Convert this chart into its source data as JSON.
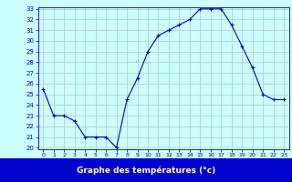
{
  "hours": [
    0,
    1,
    2,
    3,
    4,
    5,
    6,
    7,
    8,
    9,
    10,
    11,
    12,
    13,
    14,
    15,
    16,
    17,
    18,
    19,
    20,
    21,
    22,
    23
  ],
  "temps": [
    25.5,
    23.0,
    23.0,
    22.5,
    21.0,
    21.0,
    21.0,
    20.0,
    24.5,
    26.5,
    29.0,
    30.5,
    31.0,
    31.5,
    32.0,
    33.0,
    33.0,
    33.0,
    31.5,
    29.5,
    27.5,
    25.0,
    24.5,
    24.5
  ],
  "xlabel": "Graphe des températures (°c)",
  "ylim": [
    20,
    33
  ],
  "xlim": [
    -0.5,
    23.5
  ],
  "yticks": [
    20,
    21,
    22,
    23,
    24,
    25,
    26,
    27,
    28,
    29,
    30,
    31,
    32,
    33
  ],
  "xticks": [
    0,
    1,
    2,
    3,
    4,
    5,
    6,
    7,
    8,
    9,
    10,
    11,
    12,
    13,
    14,
    15,
    16,
    17,
    18,
    19,
    20,
    21,
    22,
    23
  ],
  "line_color": "#0000cc",
  "marker": "+",
  "bg_color": "#ccffff",
  "grid_color": "#aacccc",
  "tick_color": "#0000cc",
  "xlabel_bg": "#0000cc",
  "xlabel_fg": "#ffffff",
  "ytick_fontsize": 5.0,
  "xtick_fontsize": 4.5,
  "xlabel_fontsize": 6.5
}
